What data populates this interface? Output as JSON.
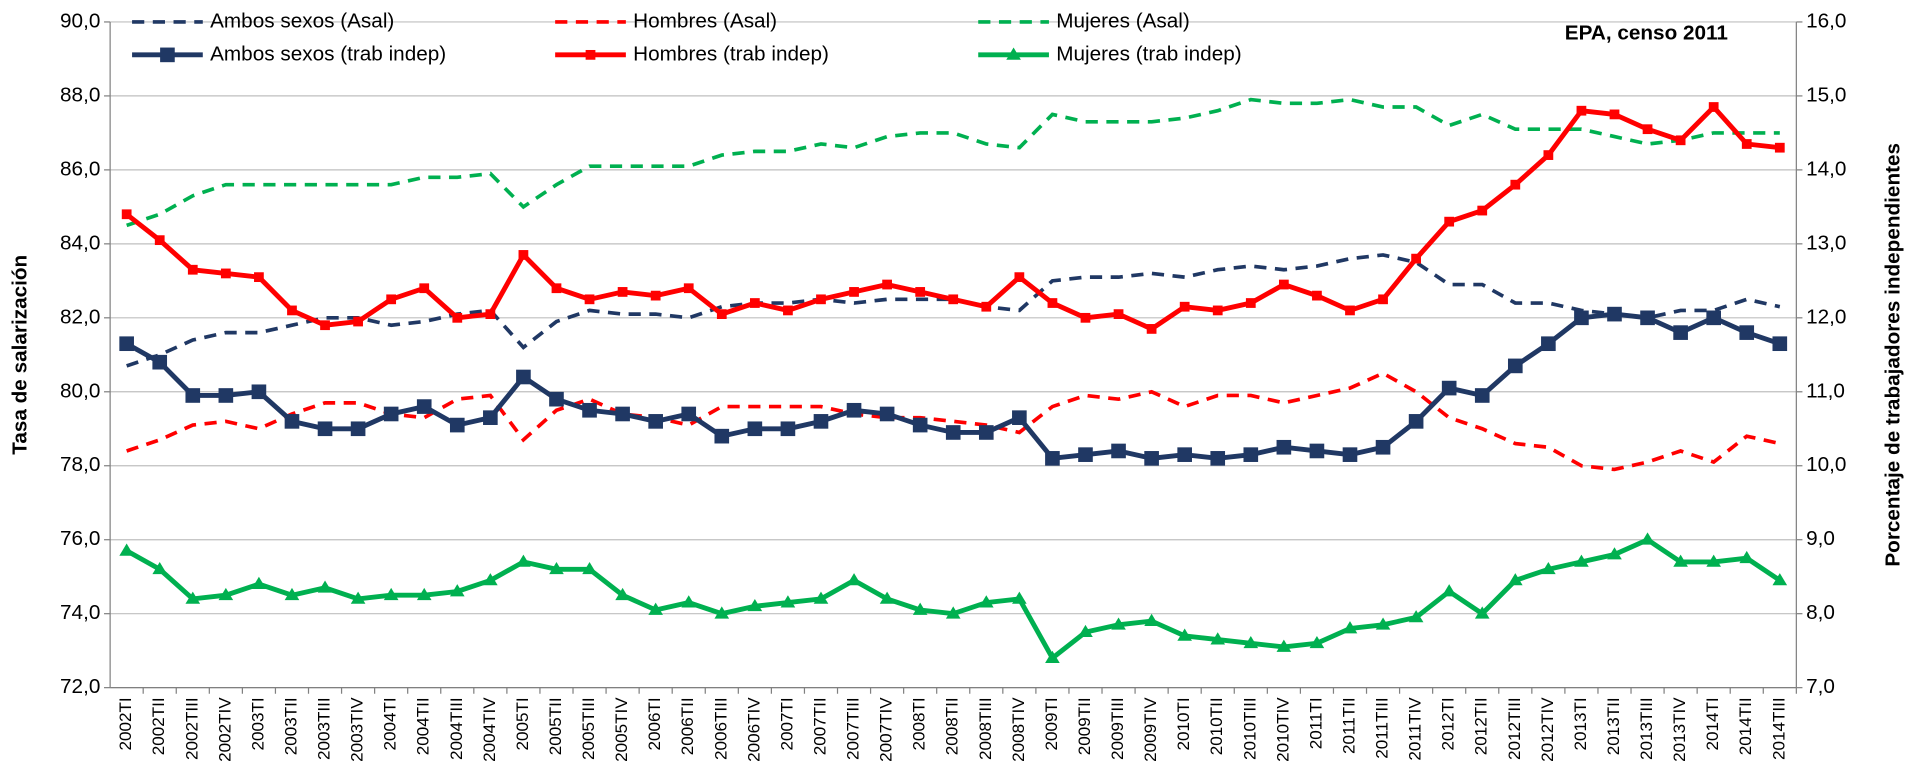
{
  "chart_data": {
    "type": "line",
    "annotation": "EPA, censo 2011",
    "y_label": "Tasa de salarización",
    "y2_label": "Porcentaje de trabajadores independientes",
    "categories": [
      "2002TI",
      "2002TII",
      "2002TIII",
      "2002TIV",
      "2003TI",
      "2003TII",
      "2003TIII",
      "2003TIV",
      "2004TI",
      "2004TII",
      "2004TIII",
      "2004TIV",
      "2005TI",
      "2005TII",
      "2005TIII",
      "2005TIV",
      "2006TI",
      "2006TII",
      "2006TIII",
      "2006TIV",
      "2007TI",
      "2007TII",
      "2007TIII",
      "2007TIV",
      "2008TI",
      "2008TII",
      "2008TIII",
      "2008TIV",
      "2009TI",
      "2009TII",
      "2009TIII",
      "2009TIV",
      "2010TI",
      "2010TII",
      "2010TIII",
      "2010TIV",
      "2011TI",
      "2011TII",
      "2011TIII",
      "2011TIV",
      "2012TI",
      "2012TII",
      "2012TIII",
      "2012TIV",
      "2013TI",
      "2013TII",
      "2013TIII",
      "2013TIV",
      "2014TI",
      "2014TII",
      "2014TIII"
    ],
    "ylim": [
      72,
      90
    ],
    "yticks": [
      {
        "value": 72,
        "label": "72,0"
      },
      {
        "value": 74,
        "label": "74,0"
      },
      {
        "value": 76,
        "label": "76,0"
      },
      {
        "value": 78,
        "label": "78,0"
      },
      {
        "value": 80,
        "label": "80,0"
      },
      {
        "value": 82,
        "label": "82,0"
      },
      {
        "value": 84,
        "label": "84,0"
      },
      {
        "value": 86,
        "label": "86,0"
      },
      {
        "value": 88,
        "label": "88,0"
      },
      {
        "value": 90,
        "label": "90,0"
      }
    ],
    "y2lim": [
      7,
      16
    ],
    "y2ticks": [
      {
        "value": 7,
        "label": "7,0"
      },
      {
        "value": 8,
        "label": "8,0"
      },
      {
        "value": 9,
        "label": "9,0"
      },
      {
        "value": 10,
        "label": "10,0"
      },
      {
        "value": 11,
        "label": "11,0"
      },
      {
        "value": 12,
        "label": "12,0"
      },
      {
        "value": 13,
        "label": "13,0"
      },
      {
        "value": 14,
        "label": "14,0"
      },
      {
        "value": 15,
        "label": "15,0"
      },
      {
        "value": 16,
        "label": "16,0"
      }
    ],
    "grid": true,
    "series": [
      {
        "name": "Ambos sexos (Asal)",
        "color": "#203864",
        "line_style": "dashed",
        "values": [
          80.7,
          81.0,
          81.4,
          81.6,
          81.6,
          81.8,
          82.0,
          82.0,
          81.8,
          81.9,
          82.1,
          82.2,
          81.2,
          81.9,
          82.2,
          82.1,
          82.1,
          82.0,
          82.3,
          82.4,
          82.4,
          82.5,
          82.4,
          82.5,
          82.5,
          82.5,
          82.3,
          82.2,
          83.0,
          83.1,
          83.1,
          83.2,
          83.1,
          83.3,
          83.4,
          83.3,
          83.4,
          83.6,
          83.7,
          83.5,
          82.9,
          82.9,
          82.4,
          82.4,
          82.2,
          82.1,
          82.0,
          82.2,
          82.2,
          82.5,
          82.3
        ]
      },
      {
        "name": "Hombres (Asal)",
        "color": "#ff0000",
        "line_style": "dashed",
        "values": [
          78.4,
          78.7,
          79.1,
          79.2,
          79.0,
          79.4,
          79.7,
          79.7,
          79.4,
          79.3,
          79.8,
          79.9,
          78.7,
          79.5,
          79.8,
          79.4,
          79.3,
          79.1,
          79.6,
          79.6,
          79.6,
          79.6,
          79.4,
          79.3,
          79.3,
          79.2,
          79.1,
          78.9,
          79.6,
          79.9,
          79.8,
          80.0,
          79.6,
          79.9,
          79.9,
          79.7,
          79.9,
          80.1,
          80.5,
          80.0,
          79.3,
          79.0,
          78.6,
          78.5,
          78.0,
          77.9,
          78.1,
          78.4,
          78.1,
          78.8,
          78.6
        ]
      },
      {
        "name": "Mujeres (Asal)",
        "color": "#00b050",
        "line_style": "dashed",
        "values": [
          84.5,
          84.8,
          85.3,
          85.6,
          85.6,
          85.6,
          85.6,
          85.6,
          85.6,
          85.8,
          85.8,
          85.9,
          85.0,
          85.6,
          86.1,
          86.1,
          86.1,
          86.1,
          86.4,
          86.5,
          86.5,
          86.7,
          86.6,
          86.9,
          87.0,
          87.0,
          86.7,
          86.6,
          87.5,
          87.3,
          87.3,
          87.3,
          87.4,
          87.6,
          87.9,
          87.8,
          87.8,
          87.9,
          87.7,
          87.7,
          87.2,
          87.5,
          87.1,
          87.1,
          87.1,
          86.9,
          86.7,
          86.8,
          87.0,
          87.0,
          87.0
        ]
      },
      {
        "name": "Ambos sexos (trab indep)",
        "color": "#203864",
        "line_style": "solid",
        "marker": "square",
        "axis": "y2",
        "values": [
          11.65,
          11.4,
          10.95,
          10.95,
          11.0,
          10.6,
          10.5,
          10.5,
          10.7,
          10.8,
          10.55,
          10.65,
          11.2,
          10.9,
          10.75,
          10.7,
          10.6,
          10.7,
          10.4,
          10.5,
          10.5,
          10.6,
          10.75,
          10.7,
          10.55,
          10.45,
          10.45,
          10.65,
          10.1,
          10.15,
          10.2,
          10.1,
          10.15,
          10.1,
          10.15,
          10.25,
          10.2,
          10.15,
          10.25,
          10.6,
          11.05,
          10.95,
          11.35,
          11.65,
          12.0,
          12.05,
          12.0,
          11.8,
          12.0,
          11.8,
          11.65
        ]
      },
      {
        "name": "Hombres (trab indep)",
        "color": "#ff0000",
        "line_style": "solid",
        "marker": "small-square",
        "axis": "y2",
        "values": [
          13.4,
          13.05,
          12.65,
          12.6,
          12.55,
          12.1,
          11.9,
          11.95,
          12.25,
          12.4,
          12.0,
          12.05,
          12.85,
          12.4,
          12.25,
          12.35,
          12.3,
          12.4,
          12.05,
          12.2,
          12.1,
          12.25,
          12.35,
          12.45,
          12.35,
          12.25,
          12.15,
          12.55,
          12.2,
          12.0,
          12.05,
          11.85,
          12.15,
          12.1,
          12.2,
          12.45,
          12.3,
          12.1,
          12.25,
          12.8,
          13.3,
          13.45,
          13.8,
          14.2,
          14.8,
          14.75,
          14.55,
          14.4,
          14.85,
          14.35,
          14.3
        ]
      },
      {
        "name": "Mujeres (trab indep)",
        "color": "#00b050",
        "line_style": "solid",
        "marker": "triangle",
        "axis": "y2",
        "values": [
          8.85,
          8.6,
          8.2,
          8.25,
          8.4,
          8.25,
          8.35,
          8.2,
          8.25,
          8.25,
          8.3,
          8.45,
          8.7,
          8.6,
          8.6,
          8.25,
          8.05,
          8.15,
          8.0,
          8.1,
          8.15,
          8.2,
          8.45,
          8.2,
          8.05,
          8.0,
          8.15,
          8.2,
          7.4,
          7.75,
          7.85,
          7.9,
          7.7,
          7.65,
          7.6,
          7.55,
          7.6,
          7.8,
          7.85,
          7.95,
          8.3,
          8.0,
          8.45,
          8.6,
          8.7,
          8.8,
          9.0,
          8.7,
          8.7,
          8.75,
          8.45
        ]
      }
    ]
  }
}
